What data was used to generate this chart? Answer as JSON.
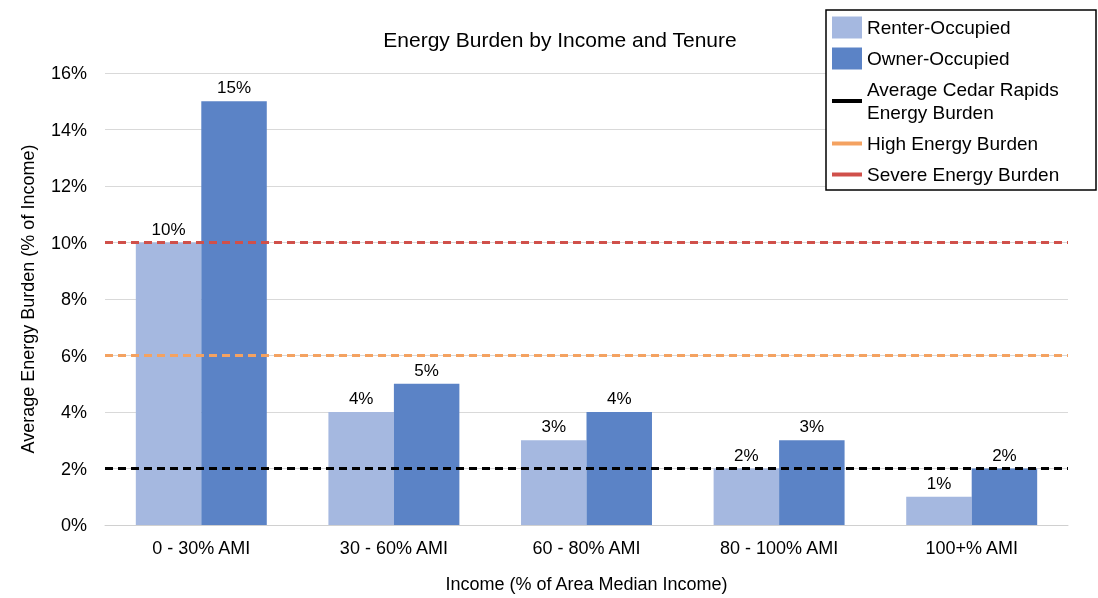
{
  "chart_data": {
    "type": "bar",
    "title": "Energy Burden by Income and Tenure",
    "xlabel": "Income (% of Area Median Income)",
    "ylabel": "Average Energy Burden (% of Income)",
    "categories": [
      "0 - 30% AMI",
      "30 - 60% AMI",
      "60 - 80% AMI",
      "80 - 100% AMI",
      "100+% AMI"
    ],
    "series": [
      {
        "name": "Renter-Occupied",
        "color": "#a5b8e0",
        "values": [
          10,
          4,
          3,
          2,
          1
        ],
        "value_labels": [
          "10%",
          "4%",
          "3%",
          "2%",
          "1%"
        ]
      },
      {
        "name": "Owner-Occupied",
        "color": "#5b83c6",
        "values": [
          15,
          5,
          4,
          3,
          2
        ],
        "value_labels": [
          "15%",
          "5%",
          "4%",
          "3%",
          "2%"
        ]
      }
    ],
    "ylim": [
      0,
      16
    ],
    "yticks": [
      {
        "value": 0,
        "label": "0%"
      },
      {
        "value": 2,
        "label": "2%"
      },
      {
        "value": 4,
        "label": "4%"
      },
      {
        "value": 6,
        "label": "6%"
      },
      {
        "value": 8,
        "label": "8%"
      },
      {
        "value": 10,
        "label": "10%"
      },
      {
        "value": 12,
        "label": "12%"
      },
      {
        "value": 14,
        "label": "14%"
      },
      {
        "value": 16,
        "label": "16%"
      }
    ],
    "ref_lines": [
      {
        "axis": "y",
        "value": 2,
        "label": "Average Cedar Rapids Energy Burden",
        "color": "#000000",
        "line_style": "dashed"
      },
      {
        "axis": "y",
        "value": 6,
        "label": "High Energy Burden",
        "color": "#f4a261",
        "line_style": "dashed"
      },
      {
        "axis": "y",
        "value": 10,
        "label": "Severe Energy Burden",
        "color": "#d0504a",
        "line_style": "dashed"
      }
    ],
    "grid": "y",
    "legend": "top right"
  }
}
